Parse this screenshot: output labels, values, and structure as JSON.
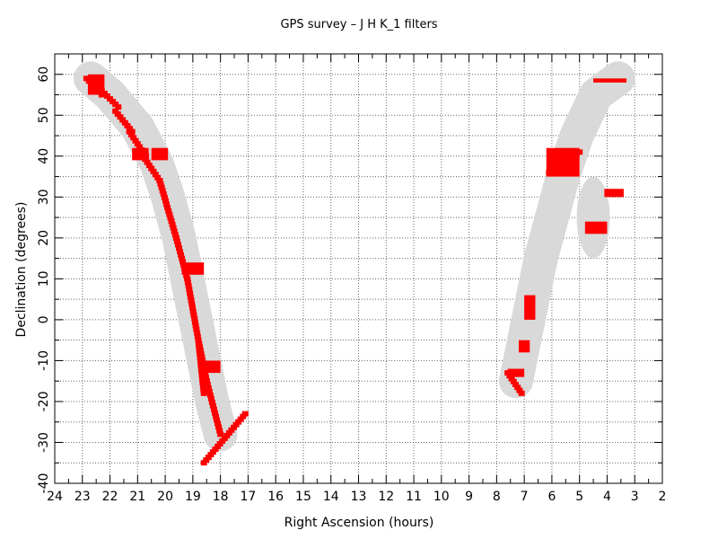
{
  "chart_data": {
    "type": "scatter",
    "title": "GPS survey  –  J H K_1   filters",
    "xlabel": "Right Ascension (hours)",
    "ylabel": "Declination (degrees)",
    "xlim": [
      24,
      2
    ],
    "ylim": [
      -40,
      65
    ],
    "x_ticks": [
      24,
      23,
      22,
      21,
      20,
      19,
      18,
      17,
      16,
      15,
      14,
      13,
      12,
      11,
      10,
      9,
      8,
      7,
      6,
      5,
      4,
      3,
      2
    ],
    "y_ticks": [
      -40,
      -30,
      -20,
      -10,
      0,
      10,
      20,
      30,
      40,
      50,
      60
    ],
    "grid": true,
    "colors": {
      "survey": "#ff0000",
      "galactic_plane": "#d9d9d9"
    },
    "galactic_plane_band": {
      "west": [
        [
          22.7,
          59
        ],
        [
          22.0,
          55
        ],
        [
          21.0,
          47
        ],
        [
          20.3,
          38
        ],
        [
          19.9,
          30
        ],
        [
          19.5,
          20
        ],
        [
          19.2,
          10
        ],
        [
          18.9,
          0
        ],
        [
          18.6,
          -10
        ],
        [
          18.3,
          -20
        ],
        [
          18.0,
          -28
        ]
      ],
      "east": [
        [
          7.3,
          -15
        ],
        [
          7.0,
          -5
        ],
        [
          6.7,
          5
        ],
        [
          6.4,
          15
        ],
        [
          6.0,
          25
        ],
        [
          5.6,
          35
        ],
        [
          5.1,
          45
        ],
        [
          4.4,
          55
        ],
        [
          3.6,
          59
        ]
      ],
      "blob": {
        "center": [
          4.5,
          25
        ],
        "radius_ra": 0.6,
        "radius_dec": 10
      }
    },
    "series": [
      {
        "segments": [
          {
            "ra_from": 22.85,
            "dec_from": 59,
            "ra_to": 22.3,
            "dec_to": 55
          },
          {
            "ra_from": 22.3,
            "dec_from": 56,
            "ra_to": 21.7,
            "dec_to": 52
          },
          {
            "ra_from": 21.8,
            "dec_from": 51,
            "ra_to": 21.2,
            "dec_to": 46
          },
          {
            "ra_from": 21.3,
            "dec_from": 46,
            "ra_to": 20.7,
            "dec_to": 40
          },
          {
            "ra_from": 20.8,
            "dec_from": 40,
            "ra_to": 20.2,
            "dec_to": 34
          },
          {
            "ra_from": 20.2,
            "dec_from": 34,
            "ra_to": 19.6,
            "dec_to": 20
          },
          {
            "ra_from": 19.6,
            "dec_from": 20,
            "ra_to": 19.2,
            "dec_to": 10
          },
          {
            "ra_from": 19.2,
            "dec_from": 10,
            "ra_to": 18.8,
            "dec_to": -5
          },
          {
            "ra_from": 18.8,
            "dec_from": -5,
            "ra_to": 18.5,
            "dec_to": -15
          },
          {
            "ra_from": 18.5,
            "dec_from": -15,
            "ra_to": 18.0,
            "dec_to": -28
          },
          {
            "ra_from": 18.6,
            "dec_from": -35,
            "ra_to": 17.1,
            "dec_to": -23
          },
          {
            "ra_from": 18.8,
            "dec_from": -5,
            "ra_to": 18.6,
            "dec_to": -18
          },
          {
            "ra_from": 7.6,
            "dec_from": -13,
            "ra_to": 7.1,
            "dec_to": -18
          },
          {
            "ra_from": 6.1,
            "dec_from": 36,
            "ra_to": 5.0,
            "dec_to": 41
          }
        ],
        "blocks": [
          {
            "ra_range": [
              22.8,
              22.2
            ],
            "dec_range": [
              55,
              60
            ]
          },
          {
            "ra_range": [
              20.5,
              19.9
            ],
            "dec_range": [
              39,
              42
            ]
          },
          {
            "ra_range": [
              21.2,
              20.6
            ],
            "dec_range": [
              39,
              42
            ]
          },
          {
            "ra_range": [
              19.4,
              18.6
            ],
            "dec_range": [
              11,
              14
            ]
          },
          {
            "ra_range": [
              18.8,
              18.0
            ],
            "dec_range": [
              -13,
              -10
            ]
          },
          {
            "ra_range": [
              7.6,
              7.0
            ],
            "dec_range": [
              -14,
              -12
            ]
          },
          {
            "ra_range": [
              7.2,
              6.8
            ],
            "dec_range": [
              -8,
              -5
            ]
          },
          {
            "ra_range": [
              7.0,
              6.6
            ],
            "dec_range": [
              0,
              6
            ]
          },
          {
            "ra_range": [
              6.2,
              5.0
            ],
            "dec_range": [
              35,
              42
            ]
          },
          {
            "ra_range": [
              4.8,
              4.0
            ],
            "dec_range": [
              21,
              24
            ]
          },
          {
            "ra_range": [
              4.1,
              3.4
            ],
            "dec_range": [
              30,
              32
            ]
          },
          {
            "ra_range": [
              4.5,
              3.3
            ],
            "dec_range": [
              58,
              59
            ]
          }
        ]
      }
    ]
  }
}
